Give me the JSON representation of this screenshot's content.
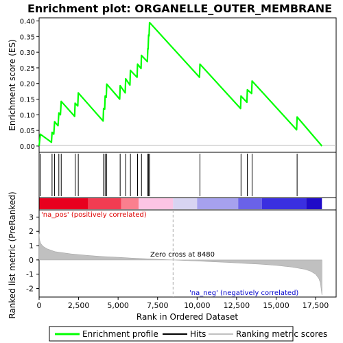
{
  "chart_data": {
    "type": "line",
    "title": "Enrichment plot: ORGANELLE_OUTER_MEMBRANE",
    "top_panel": {
      "ylabel": "Enrichment score (ES)",
      "ylim": [
        -0.02,
        0.41
      ],
      "yticks": [
        "0.00",
        "0.05",
        "0.10",
        "0.15",
        "0.20",
        "0.25",
        "0.30",
        "0.35",
        "0.40"
      ],
      "yticks_values": [
        0,
        0.05,
        0.1,
        0.15,
        0.2,
        0.25,
        0.3,
        0.35,
        0.4
      ],
      "series": [
        {
          "name": "Enrichment profile",
          "color": "#00ff00",
          "x": [
            0,
            80,
            780,
            820,
            930,
            980,
            1200,
            1250,
            1350,
            1400,
            2250,
            2280,
            2450,
            2480,
            4050,
            4080,
            4150,
            4180,
            4250,
            4280,
            5100,
            5130,
            5450,
            5480,
            5750,
            5780,
            6200,
            6230,
            6450,
            6480,
            6850,
            6880,
            6900,
            6930,
            6960,
            6990,
            10150,
            10180,
            12750,
            12780,
            13150,
            13180,
            13450,
            13480,
            16300,
            16330,
            17900
          ],
          "y": [
            0,
            0.038,
            0.012,
            0.044,
            0.038,
            0.078,
            0.065,
            0.106,
            0.1,
            0.143,
            0.095,
            0.137,
            0.128,
            0.17,
            0.08,
            0.12,
            0.118,
            0.16,
            0.156,
            0.198,
            0.15,
            0.193,
            0.17,
            0.215,
            0.195,
            0.242,
            0.22,
            0.262,
            0.248,
            0.29,
            0.27,
            0.312,
            0.31,
            0.355,
            0.352,
            0.395,
            0.22,
            0.262,
            0.12,
            0.16,
            0.14,
            0.18,
            0.168,
            0.208,
            0.052,
            0.093,
            0
          ]
        }
      ]
    },
    "hits": [
      80,
      820,
      980,
      1250,
      1400,
      2280,
      2480,
      4080,
      4180,
      4280,
      5130,
      5480,
      5780,
      6230,
      6480,
      6880,
      6930,
      6990,
      10180,
      12780,
      13180,
      13480,
      16330
    ],
    "bottom_panel": {
      "ylabel": "Ranked list metric (PreRanked)",
      "xlabel": "Rank in Ordered Dataset",
      "ylim": [
        -2.6,
        3.5
      ],
      "yticks": [
        "3",
        "2",
        "1",
        "0",
        "-1",
        "-2"
      ],
      "yticks_values": [
        3,
        2,
        1,
        0,
        -1,
        -2
      ],
      "xticks": [
        "0",
        "2,500",
        "5,000",
        "7,500",
        "10,000",
        "12,500",
        "15,000",
        "17,500"
      ],
      "xticks_values": [
        0,
        2500,
        5000,
        7500,
        10000,
        12500,
        15000,
        17500
      ],
      "xlim": [
        0,
        18800
      ],
      "metric_curve": {
        "x": [
          0,
          30,
          100,
          250,
          500,
          1000,
          2000,
          3000,
          4000,
          5000,
          6000,
          7000,
          8000,
          8480,
          9000,
          10000,
          11000,
          12000,
          13000,
          14000,
          15000,
          16000,
          16800,
          17200,
          17500,
          17700,
          17800,
          17850,
          17900
        ],
        "y": [
          1.85,
          1.4,
          1.15,
          0.95,
          0.78,
          0.58,
          0.42,
          0.32,
          0.24,
          0.18,
          0.12,
          0.07,
          0.02,
          0,
          -0.03,
          -0.08,
          -0.13,
          -0.18,
          -0.24,
          -0.3,
          -0.38,
          -0.5,
          -0.65,
          -0.8,
          -1.0,
          -1.3,
          -1.6,
          -2.0,
          -2.45
        ]
      },
      "zero_cross_rank": 8480,
      "zero_cross_label": "Zero cross at 8480",
      "na_pos_label": "'na_pos' (positively correlated)",
      "na_neg_label": "'na_neg' (negatively correlated)"
    },
    "heatmap_colors": [
      "#e8001e",
      "#f23c52",
      "#fa7f8e",
      "#fcc4e4",
      "#d8d4f2",
      "#a6a1ee",
      "#6a62e8",
      "#3a2fe0",
      "#1f0bc8"
    ],
    "legend": {
      "entries": [
        {
          "label": "Enrichment profile",
          "color": "#00ff00"
        },
        {
          "label": "Hits",
          "color": "#000000"
        },
        {
          "label": "Ranking metric scores",
          "color": "#c0c0c0"
        }
      ]
    }
  }
}
